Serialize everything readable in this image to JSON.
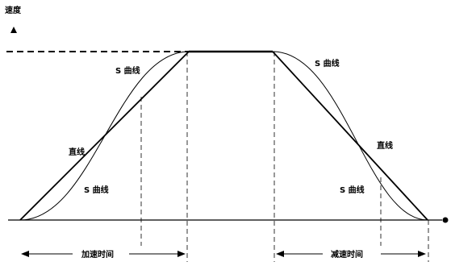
{
  "diagram": {
    "axis_label": "速度",
    "labels": {
      "s_curve_accel_top": "S 曲线",
      "s_curve_decel_top": "S 曲线",
      "straight_accel": "直线",
      "straight_decel": "直线",
      "s_curve_accel_bottom": "S 曲线",
      "s_curve_decel_bottom": "S 曲线"
    },
    "spans": {
      "accel_time": "加速时间",
      "decel_time": "减速时间"
    }
  }
}
